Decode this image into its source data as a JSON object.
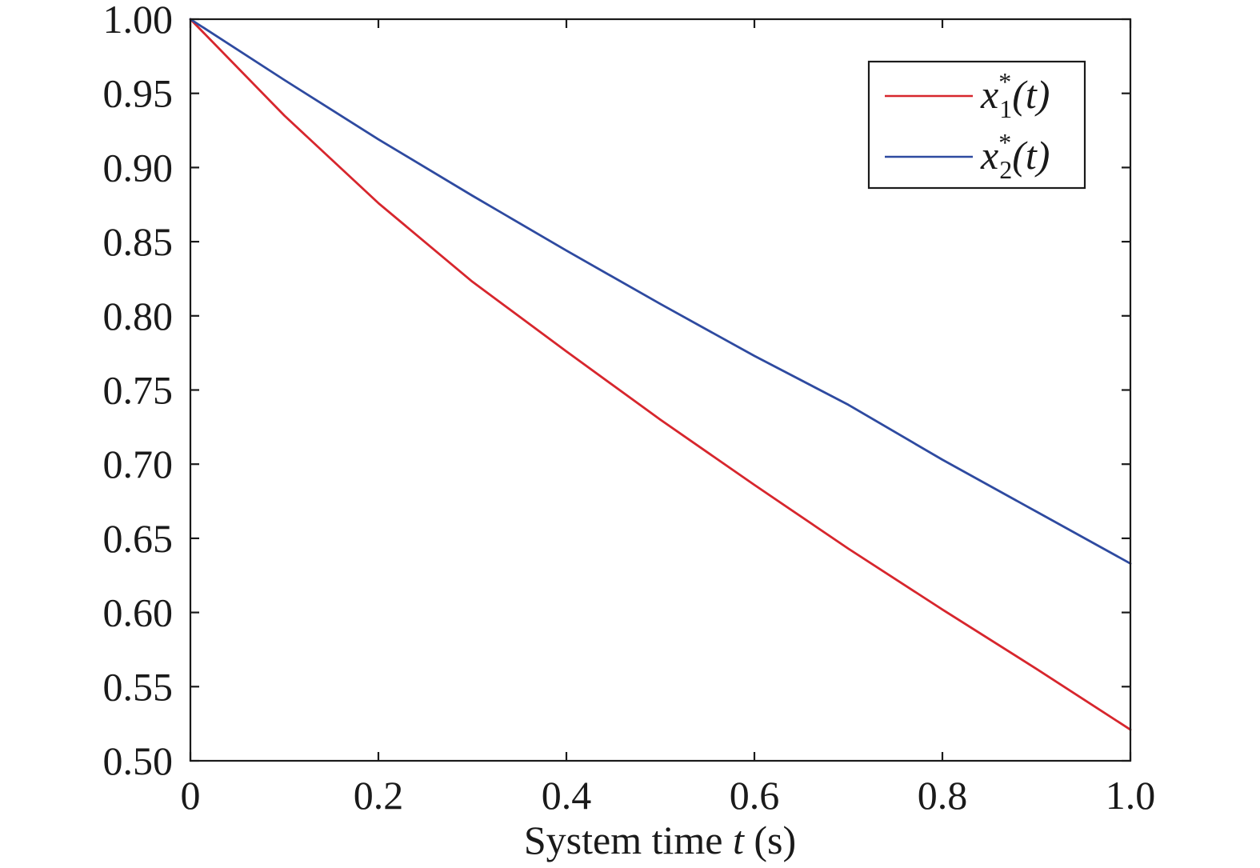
{
  "chart_data": {
    "type": "line",
    "title": "",
    "xlabel": {
      "prefix": "System time ",
      "var": "t",
      "suffix": " (s)"
    },
    "ylabel": "",
    "xlim": [
      0,
      1.0
    ],
    "ylim": [
      0.5,
      1.0
    ],
    "x_ticks": [
      0,
      0.2,
      0.4,
      0.6,
      0.8,
      1.0
    ],
    "x_tick_labels": [
      "0",
      "0.2",
      "0.4",
      "0.6",
      "0.8",
      "1.0"
    ],
    "y_ticks": [
      0.5,
      0.55,
      0.6,
      0.65,
      0.7,
      0.75,
      0.8,
      0.85,
      0.9,
      0.95,
      1.0
    ],
    "y_tick_labels": [
      "0.50",
      "0.55",
      "0.60",
      "0.65",
      "0.70",
      "0.75",
      "0.80",
      "0.85",
      "0.90",
      "0.95",
      "1.00"
    ],
    "grid": false,
    "legend_position": "top-right",
    "x": [
      0,
      0.1,
      0.2,
      0.3,
      0.4,
      0.5,
      0.6,
      0.7,
      0.8,
      0.9,
      1.0
    ],
    "series": [
      {
        "name": {
          "var": "x",
          "sup": "*",
          "sub": "1",
          "arg": "(t)"
        },
        "color": "#d7262d",
        "values": [
          1.0,
          0.935,
          0.876,
          0.823,
          0.776,
          0.73,
          0.686,
          0.643,
          0.602,
          0.562,
          0.521
        ]
      },
      {
        "name": {
          "var": "x",
          "sup": "*",
          "sub": "2",
          "arg": "(t)"
        },
        "color": "#2e4aa0",
        "values": [
          1.0,
          0.959,
          0.919,
          0.881,
          0.844,
          0.808,
          0.773,
          0.74,
          0.703,
          0.668,
          0.633
        ]
      }
    ]
  }
}
